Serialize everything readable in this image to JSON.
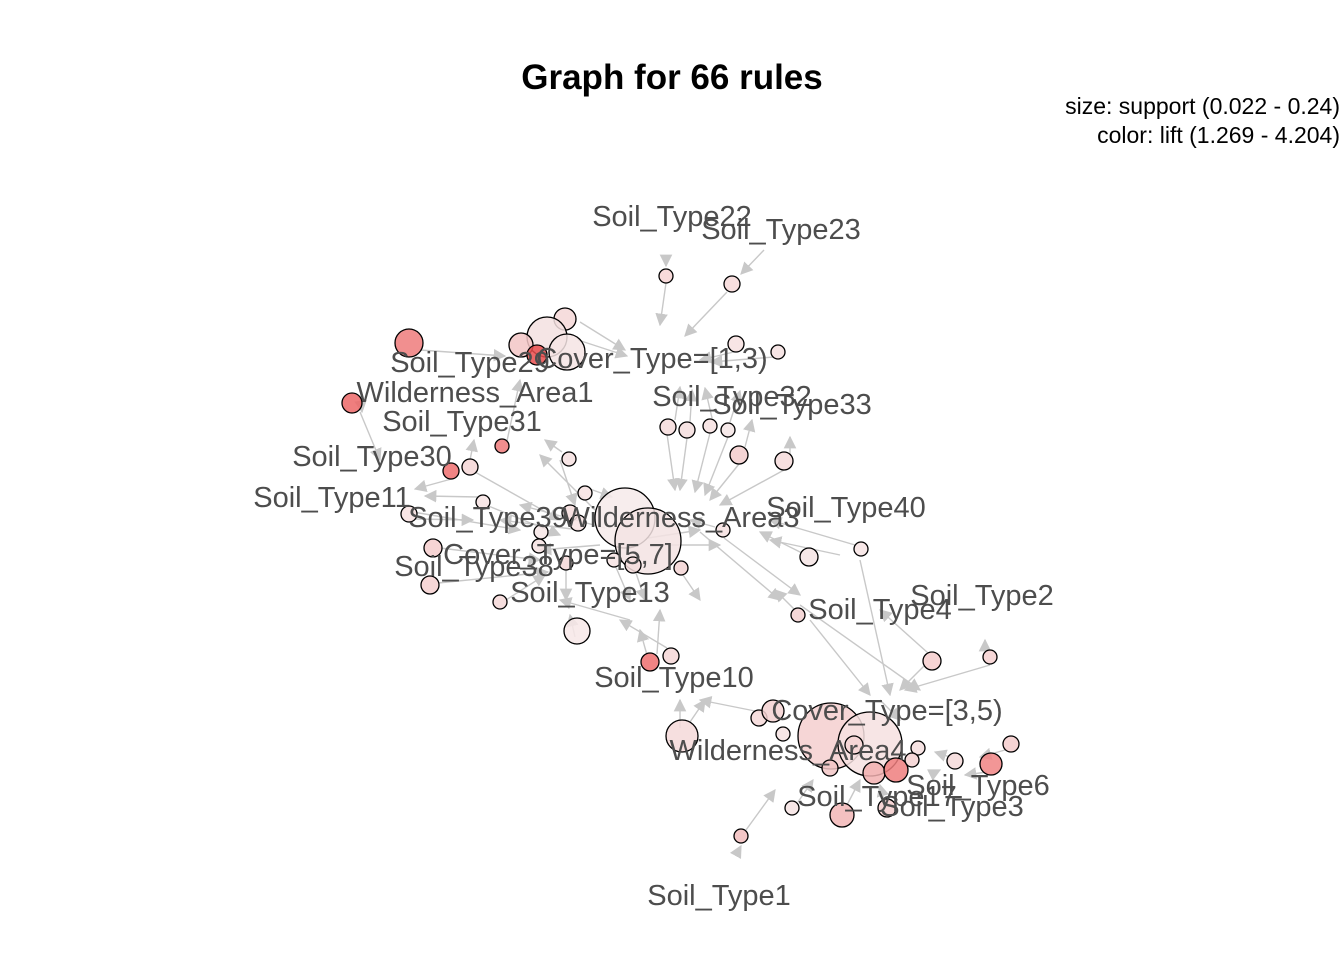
{
  "title": "Graph for 66 rules",
  "legend": {
    "size_text": "size: support (0.022 - 0.24)",
    "color_text": "color: lift (1.269 - 4.204)"
  },
  "colors": {
    "edge": "#c8c8c8",
    "label": "#4d4d4d",
    "node_stroke": "#000000",
    "lift_low": "#f5eded",
    "lift_high": "#ee4b4b"
  },
  "items": [
    "Soil_Type22",
    "Soil_Type23",
    "Soil_Type29",
    "Cover_Type=[1,3)",
    "Wilderness_Area1",
    "Soil_Type31",
    "Soil_Type32",
    "Soil_Type33",
    "Soil_Type30",
    "Soil_Type11",
    "Soil_Type39",
    "Wilderness_Area3",
    "Soil_Type40",
    "Cover_Type=[5,7]",
    "Soil_Type38",
    "Soil_Type13",
    "Soil_Type2",
    "Soil_Type4",
    "Soil_Type10",
    "Cover_Type=[3,5)",
    "Wilderness_Area4",
    "Soil_Type6",
    "Soil_Type17",
    "Soil_Type3",
    "Soil_Type1"
  ]
}
